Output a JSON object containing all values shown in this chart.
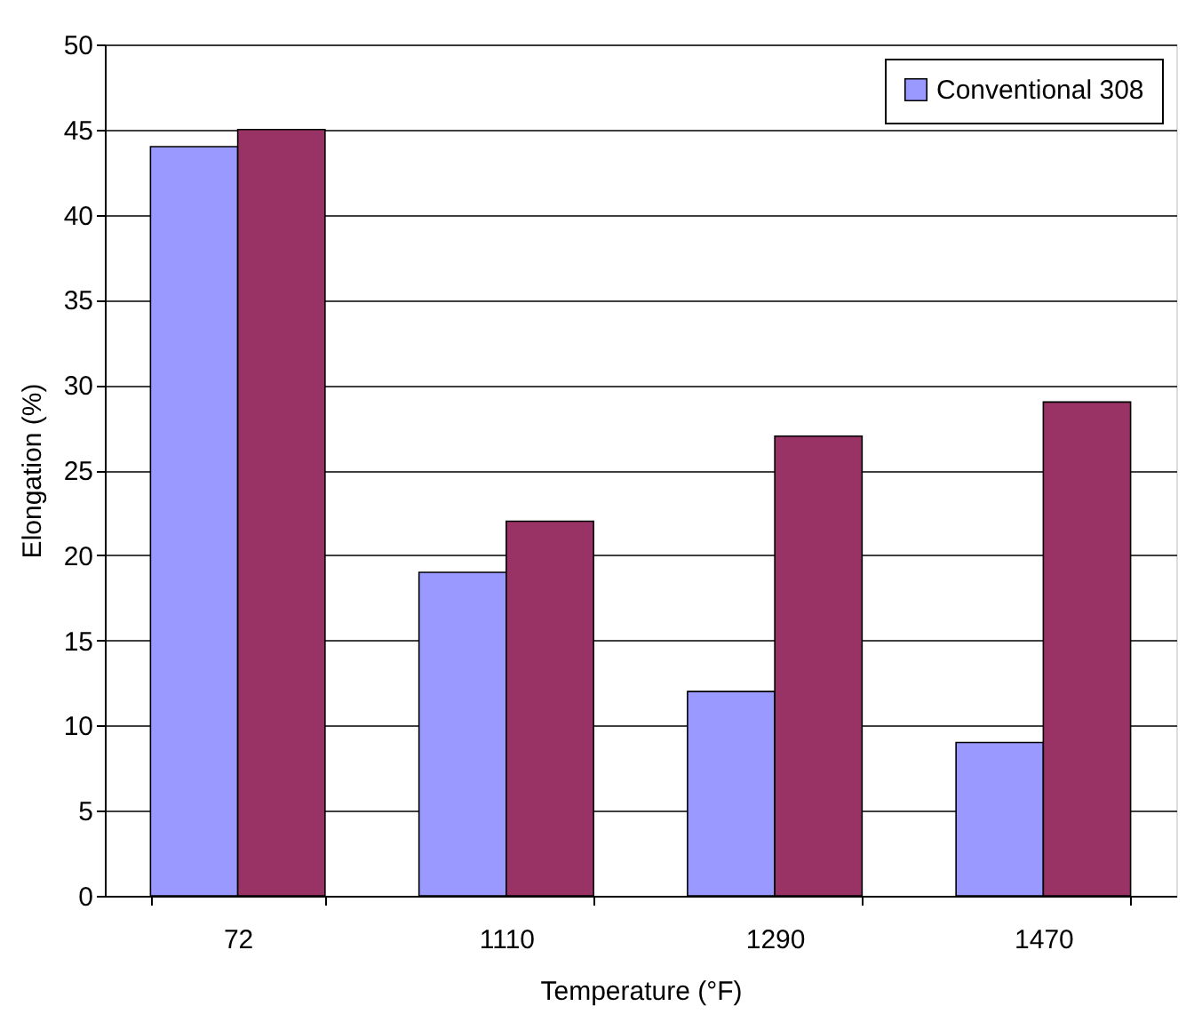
{
  "chart_data": {
    "type": "bar",
    "xlabel": "Temperature (°F)",
    "ylabel": "Elongation (%)",
    "categories": [
      "72",
      "1110",
      "1290",
      "1470"
    ],
    "series": [
      {
        "name": "Conventional 308",
        "color": "#9999ff",
        "values": [
          44,
          19,
          12,
          9
        ]
      },
      {
        "color": "#993366",
        "values": [
          45,
          22,
          27,
          29
        ]
      }
    ],
    "ylim": [
      0,
      50
    ],
    "yticks": [
      0,
      5,
      10,
      15,
      20,
      25,
      30,
      35,
      40,
      45,
      50
    ],
    "grid": "y",
    "legend": "top right"
  }
}
